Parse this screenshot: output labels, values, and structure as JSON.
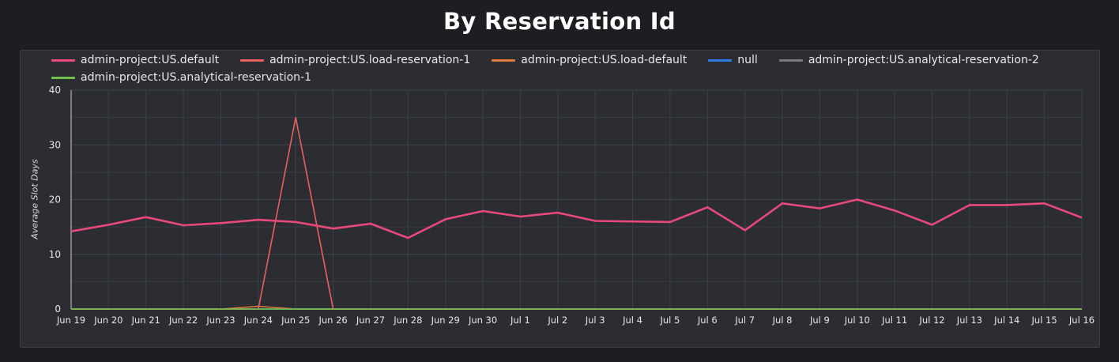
{
  "title": "By Reservation Id",
  "chart_data": {
    "type": "line",
    "title": "By Reservation Id",
    "xlabel": "",
    "ylabel": "Average Slot Days",
    "ylim": [
      0,
      40
    ],
    "yticks": [
      0,
      10,
      20,
      30,
      40
    ],
    "grid": true,
    "legend_position": "top",
    "categories": [
      "Jun 19",
      "Jun 20",
      "Jun 21",
      "Jun 22",
      "Jun 23",
      "Jun 24",
      "Jun 25",
      "Jun 26",
      "Jun 27",
      "Jun 28",
      "Jun 29",
      "Jun 30",
      "Jul 1",
      "Jul 2",
      "Jul 3",
      "Jul 4",
      "Jul 5",
      "Jul 6",
      "Jul 7",
      "Jul 8",
      "Jul 9",
      "Jul 10",
      "Jul 11",
      "Jul 12",
      "Jul 13",
      "Jul 14",
      "Jul 15",
      "Jul 16"
    ],
    "series": [
      {
        "name": "admin-project:US.default",
        "color": "#e8497a",
        "width": 2.6,
        "values": [
          14.2,
          15.4,
          16.8,
          15.3,
          15.7,
          16.3,
          15.9,
          14.7,
          15.6,
          13.0,
          16.4,
          17.9,
          16.9,
          17.6,
          16.1,
          16.0,
          15.9,
          18.6,
          14.4,
          19.3,
          18.4,
          20.0,
          18.0,
          15.4,
          19.0,
          19.0,
          19.3,
          16.7
        ]
      },
      {
        "name": "admin-project:US.load-reservation-1",
        "color": "#e8605e",
        "width": 1.6,
        "values": [
          0,
          0,
          0,
          0,
          0,
          0,
          35,
          0,
          0,
          0,
          0,
          0,
          0,
          0,
          0,
          0,
          0,
          0,
          0,
          0,
          0,
          0,
          0,
          0,
          0,
          0,
          0,
          0
        ]
      },
      {
        "name": "admin-project:US.load-default",
        "color": "#e0793c",
        "width": 1.6,
        "values": [
          0,
          0,
          0,
          0,
          0,
          0.5,
          0,
          0,
          0,
          0,
          0,
          0,
          0,
          0,
          0,
          0,
          0,
          0,
          0,
          0,
          0,
          0,
          0,
          0,
          0,
          0,
          0,
          0
        ]
      },
      {
        "name": "null",
        "color": "#2f7ae0",
        "width": 1.6,
        "values": [
          0,
          0,
          0,
          0,
          0,
          0,
          0,
          0,
          0,
          0,
          0,
          0,
          0,
          0,
          0,
          0,
          0,
          0,
          0,
          0,
          0,
          0,
          0,
          0,
          0,
          0,
          0,
          0
        ]
      },
      {
        "name": "admin-project:US.analytical-reservation-2",
        "color": "#7a7a7a",
        "width": 1.6,
        "values": [
          0,
          0,
          0,
          0,
          0,
          0,
          0,
          0,
          0,
          0,
          0,
          0,
          0,
          0,
          0,
          0,
          0,
          0,
          0,
          0,
          0,
          0,
          0,
          0,
          0,
          0,
          0,
          0
        ]
      },
      {
        "name": "admin-project:US.analytical-reservation-1",
        "color": "#6cc34a",
        "width": 1.6,
        "values": [
          0,
          0,
          0,
          0,
          0,
          0,
          0,
          0,
          0,
          0,
          0,
          0,
          0,
          0,
          0,
          0,
          0,
          0,
          0,
          0,
          0,
          0,
          0,
          0,
          0,
          0,
          0,
          0
        ]
      }
    ]
  }
}
